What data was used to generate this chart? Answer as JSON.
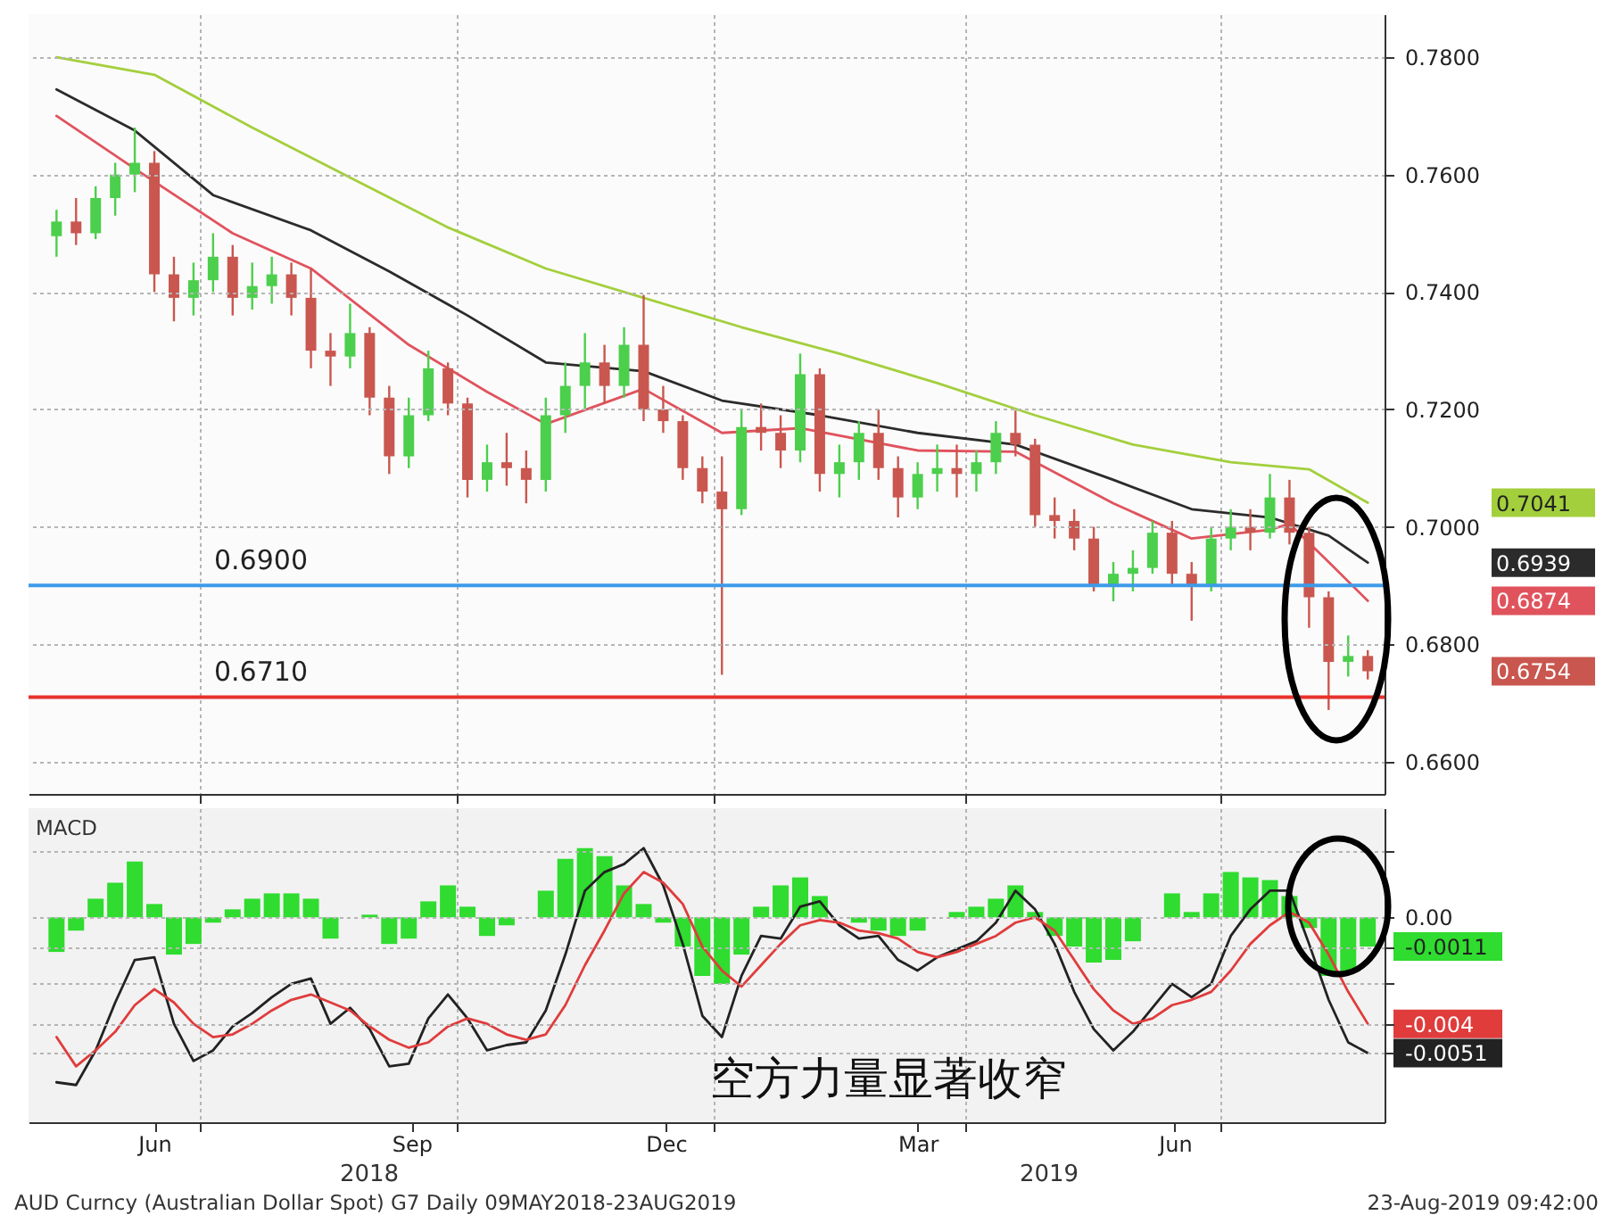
{
  "chart_data": [
    {
      "type": "candlestick",
      "x": [
        "2018-05-11",
        "2018-05-18",
        "2018-05-25",
        "2018-06-01",
        "2018-06-08",
        "2018-06-15",
        "2018-06-22",
        "2018-06-29",
        "2018-07-06",
        "2018-07-13",
        "2018-07-20",
        "2018-07-27",
        "2018-08-03",
        "2018-08-10",
        "2018-08-17",
        "2018-08-24",
        "2018-08-31",
        "2018-09-07",
        "2018-09-14",
        "2018-09-21",
        "2018-09-28",
        "2018-10-05",
        "2018-10-12",
        "2018-10-19",
        "2018-10-26",
        "2018-11-02",
        "2018-11-09",
        "2018-11-16",
        "2018-11-23",
        "2018-11-30",
        "2018-12-07",
        "2018-12-14",
        "2018-12-21",
        "2018-12-28",
        "2019-01-04",
        "2019-01-11",
        "2019-01-18",
        "2019-01-25",
        "2019-02-01",
        "2019-02-08",
        "2019-02-15",
        "2019-02-22",
        "2019-03-01",
        "2019-03-08",
        "2019-03-15",
        "2019-03-22",
        "2019-03-29",
        "2019-04-05",
        "2019-04-12",
        "2019-04-19",
        "2019-04-26",
        "2019-05-03",
        "2019-05-10",
        "2019-05-17",
        "2019-05-24",
        "2019-05-31",
        "2019-06-07",
        "2019-06-14",
        "2019-06-21",
        "2019-06-28",
        "2019-07-05",
        "2019-07-12",
        "2019-07-19",
        "2019-07-26",
        "2019-08-02",
        "2019-08-09",
        "2019-08-16",
        "2019-08-23"
      ],
      "ohlc": [
        [
          0.7495,
          0.754,
          0.746,
          0.752
        ],
        [
          0.752,
          0.756,
          0.748,
          0.75
        ],
        [
          0.75,
          0.758,
          0.749,
          0.756
        ],
        [
          0.756,
          0.762,
          0.753,
          0.76
        ],
        [
          0.76,
          0.768,
          0.757,
          0.762
        ],
        [
          0.762,
          0.764,
          0.74,
          0.743
        ],
        [
          0.743,
          0.746,
          0.735,
          0.739
        ],
        [
          0.739,
          0.745,
          0.736,
          0.742
        ],
        [
          0.742,
          0.75,
          0.74,
          0.746
        ],
        [
          0.746,
          0.748,
          0.736,
          0.739
        ],
        [
          0.739,
          0.745,
          0.737,
          0.741
        ],
        [
          0.741,
          0.746,
          0.738,
          0.743
        ],
        [
          0.743,
          0.745,
          0.736,
          0.739
        ],
        [
          0.739,
          0.744,
          0.727,
          0.73
        ],
        [
          0.73,
          0.733,
          0.724,
          0.729
        ],
        [
          0.729,
          0.738,
          0.727,
          0.733
        ],
        [
          0.733,
          0.734,
          0.719,
          0.722
        ],
        [
          0.722,
          0.724,
          0.709,
          0.712
        ],
        [
          0.712,
          0.722,
          0.71,
          0.719
        ],
        [
          0.719,
          0.73,
          0.718,
          0.727
        ],
        [
          0.727,
          0.728,
          0.719,
          0.721
        ],
        [
          0.721,
          0.722,
          0.705,
          0.708
        ],
        [
          0.708,
          0.714,
          0.706,
          0.711
        ],
        [
          0.711,
          0.716,
          0.707,
          0.71
        ],
        [
          0.71,
          0.713,
          0.704,
          0.708
        ],
        [
          0.708,
          0.722,
          0.706,
          0.719
        ],
        [
          0.719,
          0.728,
          0.716,
          0.724
        ],
        [
          0.724,
          0.733,
          0.72,
          0.728
        ],
        [
          0.728,
          0.731,
          0.721,
          0.724
        ],
        [
          0.724,
          0.734,
          0.722,
          0.731
        ],
        [
          0.731,
          0.7395,
          0.718,
          0.72
        ],
        [
          0.72,
          0.724,
          0.716,
          0.718
        ],
        [
          0.718,
          0.719,
          0.708,
          0.71
        ],
        [
          0.71,
          0.712,
          0.704,
          0.706
        ],
        [
          0.706,
          0.712,
          0.6748,
          0.703
        ],
        [
          0.703,
          0.72,
          0.702,
          0.717
        ],
        [
          0.717,
          0.721,
          0.713,
          0.716
        ],
        [
          0.716,
          0.719,
          0.71,
          0.713
        ],
        [
          0.713,
          0.7295,
          0.711,
          0.726
        ],
        [
          0.726,
          0.727,
          0.706,
          0.709
        ],
        [
          0.709,
          0.714,
          0.705,
          0.711
        ],
        [
          0.711,
          0.718,
          0.708,
          0.716
        ],
        [
          0.716,
          0.72,
          0.708,
          0.71
        ],
        [
          0.71,
          0.712,
          0.7016,
          0.705
        ],
        [
          0.705,
          0.711,
          0.703,
          0.709
        ],
        [
          0.709,
          0.714,
          0.706,
          0.71
        ],
        [
          0.71,
          0.714,
          0.705,
          0.709
        ],
        [
          0.709,
          0.713,
          0.706,
          0.711
        ],
        [
          0.711,
          0.718,
          0.709,
          0.716
        ],
        [
          0.716,
          0.7198,
          0.712,
          0.714
        ],
        [
          0.714,
          0.715,
          0.7,
          0.702
        ],
        [
          0.702,
          0.705,
          0.698,
          0.701
        ],
        [
          0.701,
          0.703,
          0.696,
          0.698
        ],
        [
          0.698,
          0.7,
          0.689,
          0.69
        ],
        [
          0.69,
          0.694,
          0.6873,
          0.692
        ],
        [
          0.692,
          0.696,
          0.689,
          0.693
        ],
        [
          0.693,
          0.701,
          0.692,
          0.699
        ],
        [
          0.699,
          0.701,
          0.69,
          0.692
        ],
        [
          0.692,
          0.694,
          0.684,
          0.69
        ],
        [
          0.69,
          0.7,
          0.689,
          0.698
        ],
        [
          0.698,
          0.703,
          0.696,
          0.7
        ],
        [
          0.7,
          0.703,
          0.696,
          0.699
        ],
        [
          0.699,
          0.709,
          0.698,
          0.705
        ],
        [
          0.705,
          0.708,
          0.697,
          0.699
        ],
        [
          0.699,
          0.7,
          0.6828,
          0.688
        ],
        [
          0.688,
          0.689,
          0.6688,
          0.677
        ],
        [
          0.677,
          0.6815,
          0.6745,
          0.678
        ],
        [
          0.678,
          0.679,
          0.674,
          0.6754
        ]
      ],
      "series": [
        {
          "type": "line",
          "color": "#a3cf3c",
          "x": [
            "2018-05-11",
            "2018-06-15",
            "2018-07-20",
            "2018-08-24",
            "2018-09-28",
            "2018-11-02",
            "2018-12-07",
            "2019-01-11",
            "2019-02-15",
            "2019-03-22",
            "2019-04-26",
            "2019-05-31",
            "2019-07-05",
            "2019-08-02",
            "2019-08-23"
          ],
          "values": [
            0.78,
            0.777,
            0.768,
            0.7595,
            0.751,
            0.744,
            0.739,
            0.734,
            0.7295,
            0.7245,
            0.719,
            0.714,
            0.711,
            0.7098,
            0.7041
          ]
        },
        {
          "type": "line",
          "color": "#2b2b2b",
          "x": [
            "2018-05-11",
            "2018-06-08",
            "2018-07-06",
            "2018-08-10",
            "2018-09-07",
            "2018-10-05",
            "2018-11-02",
            "2018-12-07",
            "2019-01-04",
            "2019-02-08",
            "2019-03-15",
            "2019-04-19",
            "2019-05-24",
            "2019-06-21",
            "2019-07-19",
            "2019-08-09",
            "2019-08-23"
          ],
          "values": [
            0.7745,
            0.7675,
            0.7565,
            0.7505,
            0.7435,
            0.736,
            0.728,
            0.7265,
            0.7215,
            0.719,
            0.716,
            0.714,
            0.708,
            0.703,
            0.7016,
            0.6985,
            0.6939
          ]
        },
        {
          "type": "line",
          "color": "#e0535d",
          "x": [
            "2018-05-11",
            "2018-06-08",
            "2018-07-13",
            "2018-08-10",
            "2018-09-14",
            "2018-10-12",
            "2018-11-02",
            "2018-12-07",
            "2019-01-04",
            "2019-02-01",
            "2019-03-15",
            "2019-04-19",
            "2019-05-24",
            "2019-06-21",
            "2019-07-19",
            "2019-07-26",
            "2019-08-09",
            "2019-08-23"
          ],
          "values": [
            0.77,
            0.761,
            0.75,
            0.744,
            0.731,
            0.723,
            0.7175,
            0.7235,
            0.716,
            0.7168,
            0.713,
            0.7128,
            0.704,
            0.698,
            0.6995,
            0.7005,
            0.694,
            0.6874
          ]
        }
      ],
      "xlim": [
        "2018-05-01",
        "2019-08-29"
      ],
      "xticks": [
        {
          "value": "2018-07-01",
          "label": null
        },
        {
          "value": "2018-10-01",
          "label": null
        },
        {
          "value": "2019-01-01",
          "label": null
        },
        {
          "value": "2019-04-01",
          "label": null
        },
        {
          "value": "2019-07-01",
          "label": null
        }
      ],
      "ylim": [
        0.6545,
        0.7873
      ],
      "yticks": [
        {
          "value": 0.66,
          "label": "0.6600"
        },
        {
          "value": 0.68,
          "label": "0.6800"
        },
        {
          "value": 0.7,
          "label": "0.7000"
        },
        {
          "value": 0.72,
          "label": "0.7200"
        },
        {
          "value": 0.74,
          "label": "0.7400"
        },
        {
          "value": 0.76,
          "label": "0.7600"
        },
        {
          "value": 0.78,
          "label": "0.7800"
        }
      ],
      "grid": true,
      "tick_labels": "y",
      "ref_lines": [
        {
          "axis": "y",
          "value": 0.69,
          "label": "0.6900",
          "color": "#3d9be9"
        },
        {
          "axis": "y",
          "value": 0.671,
          "label": "0.6710",
          "color": "#e8312b"
        }
      ],
      "y2lim": [
        0.6545,
        0.7873
      ],
      "y2ticks": [
        0.7041,
        0.6939,
        0.6874,
        0.6754
      ]
    },
    {
      "type": "line",
      "title": "MACD",
      "x": [
        "2018-05-11",
        "2018-05-18",
        "2018-05-25",
        "2018-06-01",
        "2018-06-08",
        "2018-06-15",
        "2018-06-22",
        "2018-06-29",
        "2018-07-06",
        "2018-07-13",
        "2018-07-20",
        "2018-07-27",
        "2018-08-03",
        "2018-08-10",
        "2018-08-17",
        "2018-08-24",
        "2018-08-31",
        "2018-09-07",
        "2018-09-14",
        "2018-09-21",
        "2018-09-28",
        "2018-10-05",
        "2018-10-12",
        "2018-10-19",
        "2018-10-26",
        "2018-11-02",
        "2018-11-09",
        "2018-11-16",
        "2018-11-23",
        "2018-11-30",
        "2018-12-07",
        "2018-12-14",
        "2018-12-21",
        "2018-12-28",
        "2019-01-04",
        "2019-01-11",
        "2019-01-18",
        "2019-01-25",
        "2019-02-01",
        "2019-02-08",
        "2019-02-15",
        "2019-02-22",
        "2019-03-01",
        "2019-03-08",
        "2019-03-15",
        "2019-03-22",
        "2019-03-29",
        "2019-04-05",
        "2019-04-12",
        "2019-04-19",
        "2019-04-26",
        "2019-05-03",
        "2019-05-10",
        "2019-05-17",
        "2019-05-24",
        "2019-05-31",
        "2019-06-07",
        "2019-06-14",
        "2019-06-21",
        "2019-06-28",
        "2019-07-05",
        "2019-07-12",
        "2019-07-19",
        "2019-07-26",
        "2019-08-02",
        "2019-08-09",
        "2019-08-16",
        "2019-08-23"
      ],
      "series": [
        {
          "type": "bar",
          "color": "#2fdc2f",
          "values": [
            -0.0013,
            -0.0005,
            0.0007,
            0.0013,
            0.0021,
            0.0005,
            -0.0014,
            -0.001,
            -0.0002,
            0.0003,
            0.0007,
            0.0009,
            0.0009,
            0.0007,
            -0.0008,
            0.0,
            0.0001,
            -0.001,
            -0.0008,
            0.0006,
            0.0012,
            0.0004,
            -0.0007,
            -0.0003,
            0.0,
            0.001,
            0.0022,
            0.0026,
            0.0023,
            0.0012,
            0.0005,
            -0.0002,
            -0.0011,
            -0.0022,
            -0.0025,
            -0.0014,
            0.0004,
            0.0012,
            0.0015,
            0.0008,
            0.0,
            -0.0002,
            -0.0005,
            -0.0007,
            -0.0005,
            0.0,
            0.0002,
            0.0004,
            0.0007,
            0.0012,
            0.0002,
            -0.0007,
            -0.0011,
            -0.0017,
            -0.0016,
            -0.0009,
            0.0,
            0.0009,
            0.0002,
            0.0009,
            0.0017,
            0.0015,
            0.0014,
            0.0008,
            -0.0004,
            -0.0022,
            -0.002,
            -0.0011
          ]
        },
        {
          "type": "line",
          "color": "#222222",
          "values": [
            -0.0062,
            -0.0063,
            -0.005,
            -0.0032,
            -0.0016,
            -0.0015,
            -0.004,
            -0.0054,
            -0.005,
            -0.0041,
            -0.0036,
            -0.003,
            -0.0025,
            -0.0023,
            -0.004,
            -0.0034,
            -0.0042,
            -0.0056,
            -0.0055,
            -0.0038,
            -0.0029,
            -0.0038,
            -0.005,
            -0.0048,
            -0.0047,
            -0.0035,
            -0.0014,
            0.001,
            0.0017,
            0.002,
            0.0026,
            0.0012,
            -0.001,
            -0.0037,
            -0.0045,
            -0.0022,
            -0.0007,
            -0.0008,
            0.0004,
            0.0006,
            -0.0003,
            -0.0008,
            -0.0007,
            -0.0016,
            -0.002,
            -0.0015,
            -0.0012,
            -0.0009,
            -0.0002,
            0.001,
            0.0003,
            -0.001,
            -0.0028,
            -0.0042,
            -0.005,
            -0.0043,
            -0.0034,
            -0.0025,
            -0.003,
            -0.0025,
            -0.0007,
            0.0003,
            0.001,
            0.001,
            -0.001,
            -0.0031,
            -0.0047,
            -0.0051
          ]
        },
        {
          "type": "line",
          "color": "#e03c3c",
          "values": [
            -0.0045,
            -0.0056,
            -0.005,
            -0.0043,
            -0.0033,
            -0.0027,
            -0.0032,
            -0.004,
            -0.0045,
            -0.0044,
            -0.004,
            -0.0035,
            -0.0031,
            -0.0029,
            -0.0032,
            -0.0035,
            -0.0041,
            -0.0046,
            -0.0049,
            -0.0047,
            -0.0041,
            -0.0038,
            -0.004,
            -0.0044,
            -0.0046,
            -0.0044,
            -0.0033,
            -0.0018,
            -0.0005,
            0.0009,
            0.0017,
            0.0013,
            0.0005,
            -0.0011,
            -0.002,
            -0.0026,
            -0.0018,
            -0.001,
            -0.0003,
            -0.0001,
            -0.0002,
            -0.0005,
            -0.0006,
            -0.0008,
            -0.0013,
            -0.0015,
            -0.0013,
            -0.001,
            -0.0007,
            -0.0002,
            0.0,
            -0.0005,
            -0.0016,
            -0.0027,
            -0.0035,
            -0.004,
            -0.0038,
            -0.0033,
            -0.0031,
            -0.0028,
            -0.002,
            -0.001,
            -0.0003,
            0.0002,
            -0.0002,
            -0.0014,
            -0.0028,
            -0.004
          ]
        }
      ],
      "xlim": [
        "2018-05-01",
        "2019-08-29"
      ],
      "xticks": [
        {
          "value": "2018-06-15",
          "label": "Jun"
        },
        {
          "value": "2018-07-01",
          "label": null
        },
        {
          "value": "2018-09-15",
          "label": "Sep"
        },
        {
          "value": "2018-10-01",
          "label": null
        },
        {
          "value": "2018-12-15",
          "label": "Dec"
        },
        {
          "value": "2019-01-01",
          "label": null
        },
        {
          "value": "2019-03-15",
          "label": "Mar"
        },
        {
          "value": "2019-04-01",
          "label": null
        },
        {
          "value": "2019-06-15",
          "label": "Jun"
        },
        {
          "value": "2019-07-01",
          "label": null
        }
      ],
      "ylim": [
        -0.0077,
        0.0041
      ],
      "yticks": [
        {
          "value": 0.0025,
          "label": null
        },
        {
          "value": 0,
          "label": "0.00"
        },
        {
          "value": -0.0011,
          "label": "-0.0011"
        },
        {
          "value": -0.0025,
          "label": null
        },
        {
          "value": -0.004,
          "label": "-0.004"
        },
        {
          "value": -0.0051,
          "label": "-0.0051"
        }
      ],
      "grid": true,
      "annotations": [
        "空方力量显著收窄",
        "2018",
        "2019",
        "AUD Curncy (Australian Dollar Spot) G7  Daily 09MAY2018-23AUG2019",
        "23-Aug-2019 09:42:00"
      ]
    }
  ]
}
